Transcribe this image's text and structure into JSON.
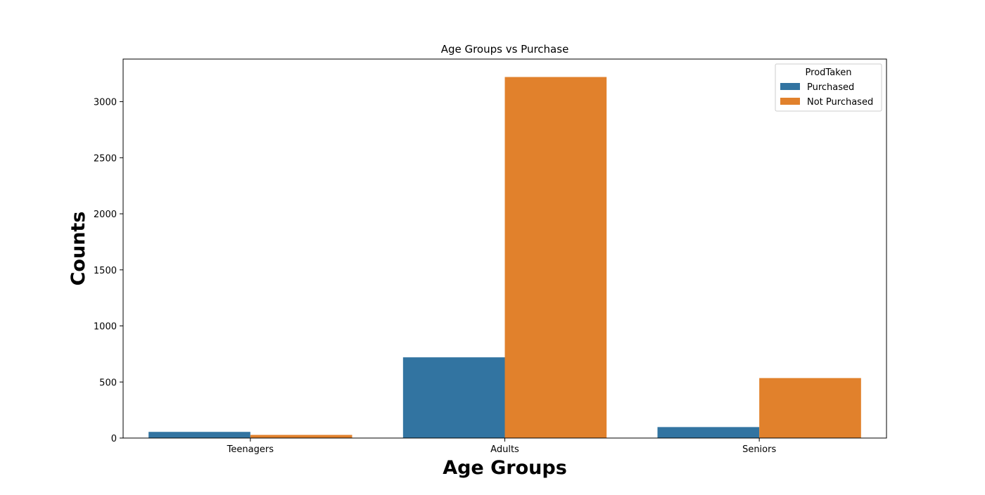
{
  "chart_data": {
    "type": "bar",
    "title": "Age Groups vs Purchase",
    "xlabel": "Age Groups",
    "ylabel": "Counts",
    "categories": [
      "Teenagers",
      "Adults",
      "Seniors"
    ],
    "series": [
      {
        "name": "Purchased",
        "color": "#3274a1",
        "values": [
          55,
          720,
          98
        ]
      },
      {
        "name": "Not Purchased",
        "color": "#e1812c",
        "values": [
          28,
          3220,
          535
        ]
      }
    ],
    "ylim": [
      0,
      3380
    ],
    "yticks": [
      0,
      500,
      1000,
      1500,
      2000,
      2500,
      3000
    ],
    "legend": {
      "title": "ProdTaken",
      "position": "top-right"
    },
    "grid": false
  }
}
